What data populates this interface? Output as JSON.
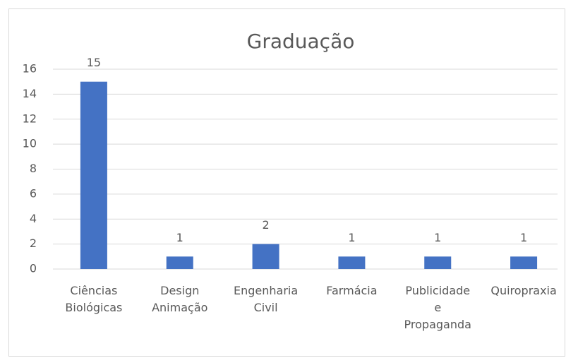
{
  "chart_data": {
    "type": "bar",
    "title": "Graduação",
    "categories": [
      "Ciências Biológicas",
      "Design Animação",
      "Engenharia Civil",
      "Farmácia",
      "Publicidade e Propaganda",
      "Quiropraxia"
    ],
    "values": [
      15,
      1,
      2,
      1,
      1,
      1
    ],
    "color": "#4472c4",
    "ylim": [
      0,
      16
    ],
    "yticks": [
      0,
      2,
      4,
      6,
      8,
      10,
      12,
      14,
      16
    ],
    "grid": true
  }
}
